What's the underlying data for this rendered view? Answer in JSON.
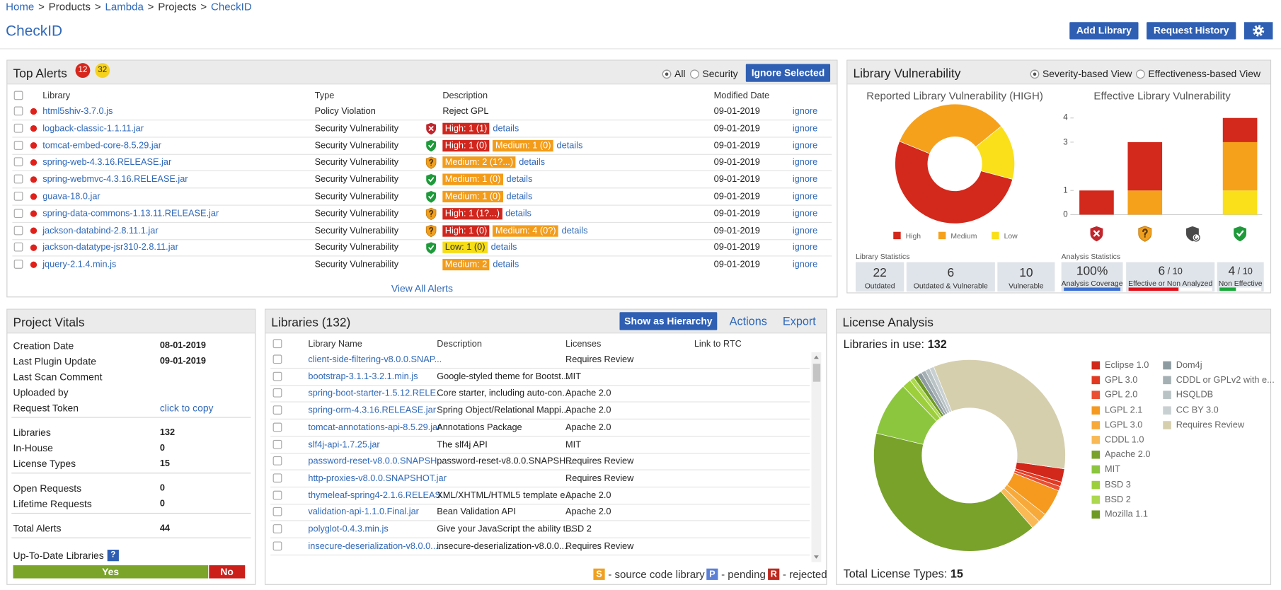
{
  "breadcrumb": {
    "separator": ">",
    "items": [
      {
        "text": "Home",
        "link": true
      },
      {
        "text": "Products",
        "link": false
      },
      {
        "text": "Lambda",
        "link": true
      },
      {
        "text": "Projects",
        "link": false
      },
      {
        "text": "CheckID",
        "link": true
      }
    ]
  },
  "page_title": "CheckID",
  "header_buttons": [
    "Add Library",
    "Request History"
  ],
  "top_alerts": {
    "title": "Top Alerts",
    "badges": [
      12,
      32
    ],
    "filters": [
      "All",
      "Security"
    ],
    "selected_filter": 0,
    "button": "Ignore Selected",
    "columns": [
      "Library",
      "Type",
      "Description",
      "Modified Date"
    ],
    "rows": [
      {
        "library": "html5shiv-3.7.0.js",
        "type": "Policy Violation",
        "description": "Reject GPL",
        "date": "09-01-2019",
        "action": "ignore"
      },
      {
        "library": "logback-classic-1.1.11.jar",
        "type": "Security Vulnerability",
        "shield": "red",
        "tags": [
          {
            "text": "High: 1 (1)",
            "level": "high"
          }
        ],
        "details": "details",
        "date": "09-01-2019",
        "action": "ignore"
      },
      {
        "library": "tomcat-embed-core-8.5.29.jar",
        "type": "Security Vulnerability",
        "shield": "green",
        "tags": [
          {
            "text": "High: 1 (0)",
            "level": "high"
          },
          {
            "text": "Medium: 1 (0)",
            "level": "medium"
          }
        ],
        "details": "details",
        "date": "09-01-2019",
        "action": "ignore"
      },
      {
        "library": "spring-web-4.3.16.RELEASE.jar",
        "type": "Security Vulnerability",
        "shield": "orange",
        "tags": [
          {
            "text": "Medium: 2 (1?...)",
            "level": "medium"
          }
        ],
        "details": "details",
        "date": "09-01-2019",
        "action": "ignore"
      },
      {
        "library": "spring-webmvc-4.3.16.RELEASE.jar",
        "type": "Security Vulnerability",
        "shield": "green",
        "tags": [
          {
            "text": "Medium: 1 (0)",
            "level": "medium"
          }
        ],
        "details": "details",
        "date": "09-01-2019",
        "action": "ignore"
      },
      {
        "library": "guava-18.0.jar",
        "type": "Security Vulnerability",
        "shield": "green",
        "tags": [
          {
            "text": "Medium: 1 (0)",
            "level": "medium"
          }
        ],
        "details": "details",
        "date": "09-01-2019",
        "action": "ignore"
      },
      {
        "library": "spring-data-commons-1.13.11.RELEASE.jar",
        "type": "Security Vulnerability",
        "shield": "orange",
        "tags": [
          {
            "text": "High: 1 (1?...)",
            "level": "high"
          }
        ],
        "details": "details",
        "date": "09-01-2019",
        "action": "ignore"
      },
      {
        "library": "jackson-databind-2.8.11.1.jar",
        "type": "Security Vulnerability",
        "shield": "orange",
        "tags": [
          {
            "text": "High: 1 (0)",
            "level": "high"
          },
          {
            "text": "Medium: 4 (0?)",
            "level": "medium"
          }
        ],
        "details": "details",
        "date": "09-01-2019",
        "action": "ignore"
      },
      {
        "library": "jackson-datatype-jsr310-2.8.11.jar",
        "type": "Security Vulnerability",
        "shield": "green",
        "tags": [
          {
            "text": "Low: 1 (0)",
            "level": "low"
          }
        ],
        "details": "details",
        "date": "09-01-2019",
        "action": "ignore"
      },
      {
        "library": "jquery-2.1.4.min.js",
        "type": "Security Vulnerability",
        "tags": [
          {
            "text": "Medium: 2",
            "level": "medium"
          }
        ],
        "details": "details",
        "date": "09-01-2019",
        "action": "ignore"
      }
    ],
    "footer_link": "View All Alerts"
  },
  "library_vulnerability": {
    "title": "Library Vulnerability",
    "views": [
      "Severity-based View",
      "Effectiveness-based View"
    ],
    "selected_view": 0,
    "severity_chart": {
      "type": "donut",
      "title": "Reported Library Vulnerability (HIGH)",
      "categories": [
        "High",
        "Medium",
        "Low"
      ],
      "colors": [
        "#d3281c",
        "#f5a11c",
        "#f9e01a"
      ],
      "values": [
        52,
        33,
        15
      ]
    },
    "effective_chart": {
      "type": "stacked-bar",
      "title": "Effective Library Vulnerability",
      "categories": [
        null,
        null,
        null,
        null
      ],
      "category_icons": [
        "red",
        "orange",
        "gray",
        "green"
      ],
      "ylim": [
        0,
        4
      ],
      "yticks": [
        0,
        1,
        3,
        4
      ],
      "series": [
        {
          "color": "#f9e01a",
          "values": [
            0,
            0,
            0,
            1
          ]
        },
        {
          "color": "#f5a11c",
          "values": [
            0,
            1,
            0,
            2
          ]
        },
        {
          "color": "#d3281c",
          "values": [
            1,
            2,
            0,
            1
          ]
        }
      ]
    },
    "library_statistics": {
      "label": "Library Statistics",
      "items": [
        {
          "value": 22,
          "label": "Outdated"
        },
        {
          "value": 6,
          "label": "Outdated & Vulnerable"
        },
        {
          "value": 10,
          "label": "Vulnerable"
        }
      ]
    },
    "analysis_statistics": {
      "label": "Analysis Statistics",
      "items": [
        {
          "value": "100%",
          "label": "Analysis Coverage",
          "progress": 100,
          "color": "#3b6fd0"
        },
        {
          "value": "6",
          "total": "/ 10",
          "label": "Effective or Non Analyzed",
          "progress": 60,
          "color": "#e0101a"
        },
        {
          "value": "4",
          "total": "/ 10",
          "label": "Non Effective",
          "progress": 40,
          "color": "#1aa83a"
        }
      ]
    }
  },
  "project_vitals": {
    "title": "Project Vitals",
    "groups": [
      [
        {
          "label": "Creation Date",
          "value": "08-01-2019"
        },
        {
          "label": "Last Plugin Update",
          "value": "09-01-2019"
        },
        {
          "label": "Last Scan Comment"
        },
        {
          "label": "Uploaded by"
        },
        {
          "label": "Request Token",
          "link": "click to copy"
        }
      ],
      [
        {
          "label": "Libraries",
          "value": 132
        },
        {
          "label": "In-House",
          "value": 0
        },
        {
          "label": "License Types",
          "value": 15
        }
      ],
      [
        {
          "label": "Open Requests",
          "value": 0
        },
        {
          "label": "Lifetime Requests",
          "value": 0
        }
      ],
      [
        {
          "label": "Total Alerts",
          "value": 44
        }
      ]
    ],
    "up_to_date": {
      "label": "Up-To-Date Libraries",
      "help": "?",
      "yes": {
        "label": "Yes",
        "share": 84
      },
      "no": {
        "label": "No",
        "share": 16
      }
    }
  },
  "libraries": {
    "title": "Libraries (132)",
    "buttons": [
      "Show as Hierarchy",
      "Actions",
      "Export"
    ],
    "columns": [
      "Library Name",
      "Description",
      "Licenses",
      "Link to RTC"
    ],
    "rows": [
      {
        "name": "client-side-filtering-v8.0.0.SNAP...",
        "license": "Requires Review"
      },
      {
        "name": "bootstrap-3.1.1-3.2.1.min.js",
        "description": "Google-styled theme for Bootst...",
        "license": "MIT"
      },
      {
        "name": "spring-boot-starter-1.5.12.RELE...",
        "description": "Core starter, including auto-con...",
        "license": "Apache 2.0"
      },
      {
        "name": "spring-orm-4.3.16.RELEASE.jar",
        "description": "Spring Object/Relational Mappi...",
        "license": "Apache 2.0"
      },
      {
        "name": "tomcat-annotations-api-8.5.29.jar",
        "description": "Annotations Package",
        "license": "Apache 2.0"
      },
      {
        "name": "slf4j-api-1.7.25.jar",
        "description": "The slf4j API",
        "license": "MIT"
      },
      {
        "name": "password-reset-v8.0.0.SNAPSH...",
        "description": "password-reset-v8.0.0.SNAPSH...",
        "license": "Requires Review"
      },
      {
        "name": "http-proxies-v8.0.0.SNAPSHOT.jar",
        "license": "Requires Review"
      },
      {
        "name": "thymeleaf-spring4-2.1.6.RELEAS...",
        "description": "XML/XHTML/HTML5 template e...",
        "license": "Apache 2.0"
      },
      {
        "name": "validation-api-1.1.0.Final.jar",
        "description": "Bean Validation API",
        "license": "Apache 2.0"
      },
      {
        "name": "polyglot-0.4.3.min.js",
        "description": "Give your JavaScript the ability t...",
        "license": "BSD 2"
      },
      {
        "name": "insecure-deserialization-v8.0.0....",
        "description": "insecure-deserialization-v8.0.0....",
        "license": "Requires Review"
      }
    ],
    "legend": [
      {
        "key": "S",
        "text": "- source code library",
        "color": "#f0a020"
      },
      {
        "key": "P",
        "text": "- pending",
        "color": "#5b80d8"
      },
      {
        "key": "R",
        "text": "- rejected",
        "color": "#c0281e"
      }
    ]
  },
  "license_analysis": {
    "title": "License Analysis",
    "in_use_label": "Libraries in use:",
    "in_use": 132,
    "chart": {
      "type": "donut",
      "categories": [
        "Eclipse 1.0",
        "GPL 3.0",
        "GPL 2.0",
        "LGPL 2.1",
        "LGPL 3.0",
        "CDDL 1.0",
        "Apache 2.0",
        "MIT",
        "BSD 3",
        "BSD 2",
        "Mozilla 1.1",
        "Dom4j",
        "CDDL or GPLv2 with e...",
        "HSQLDB",
        "CC BY 3.0",
        "Requires Review"
      ],
      "colors": [
        "#d2271b",
        "#e23a22",
        "#ea4f33",
        "#f59a1f",
        "#f7a93a",
        "#f9b955",
        "#78a22a",
        "#8cc63f",
        "#9dcf3c",
        "#acd84f",
        "#6e9a24",
        "#8d9ba0",
        "#a5b0b4",
        "#b9c3c6",
        "#c9d0d2",
        "#d6cfae"
      ],
      "values": [
        3,
        1,
        1,
        6,
        2,
        2,
        53,
        12,
        2,
        1,
        1,
        1,
        1,
        1,
        1,
        44
      ]
    },
    "total_label": "Total License Types:",
    "total": 15
  }
}
